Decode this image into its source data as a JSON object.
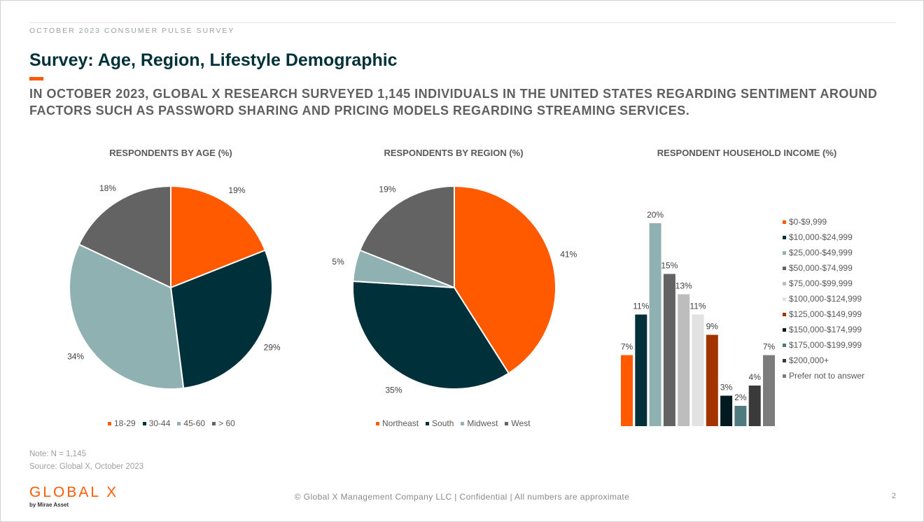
{
  "header": {
    "kicker": "OCTOBER 2023 CONSUMER PULSE SURVEY",
    "title": "Survey: Age, Region, Lifestyle Demographic",
    "subtitle": "IN OCTOBER 2023, GLOBAL X RESEARCH SURVEYED 1,145 INDIVIDUALS IN THE UNITED STATES REGARDING SENTIMENT AROUND FACTORS SUCH AS PASSWORD SHARING AND PRICING MODELS REGARDING STREAMING SERVICES."
  },
  "chart_data": [
    {
      "type": "pie",
      "title": "RESPONDENTS BY AGE (%)",
      "categories": [
        "18-29",
        "30-44",
        "45-60",
        "> 60"
      ],
      "values": [
        19,
        29,
        34,
        18
      ],
      "labels": [
        "19%",
        "29%",
        "34%",
        "18%"
      ],
      "colors": [
        "#ff5a00",
        "#00313a",
        "#8fb1b1",
        "#636363"
      ],
      "legend": "bottom"
    },
    {
      "type": "pie",
      "title": "RESPONDENTS BY REGION (%)",
      "categories": [
        "Northeast",
        "South",
        "Midwest",
        "West"
      ],
      "values": [
        41,
        35,
        5,
        19
      ],
      "labels": [
        "41%",
        "35%",
        "5%",
        "19%"
      ],
      "colors": [
        "#ff5a00",
        "#00313a",
        "#8fb1b1",
        "#636363"
      ],
      "legend": "bottom"
    },
    {
      "type": "bar",
      "title": "RESPONDENT HOUSEHOLD INCOME (%)",
      "categories": [
        "$0-$9,999",
        "$10,000-$24,999",
        "$25,000-$49,999",
        "$50,000-$74,999",
        "$75,000-$99,999",
        "$100,000-$124,999",
        "$125,000-$149,999",
        "$150,000-$174,999",
        "$175,000-$199,999",
        "$200,000+",
        "Prefer not to answer"
      ],
      "values": [
        7,
        11,
        20,
        15,
        13,
        11,
        9,
        3,
        2,
        4,
        7
      ],
      "labels": [
        "7%",
        "11%",
        "20%",
        "15%",
        "13%",
        "11%",
        "9%",
        "3%",
        "2%",
        "4%",
        "7%"
      ],
      "colors": [
        "#ff5a00",
        "#00313a",
        "#8fb1b1",
        "#636363",
        "#bdbdbd",
        "#e2e2e2",
        "#a33400",
        "#001a1f",
        "#4f7a7e",
        "#3a3a3a",
        "#7c7c7c"
      ],
      "ylim": [
        0,
        20
      ],
      "legend": "right"
    }
  ],
  "notes": {
    "note": "Note: N = 1,145",
    "source": "Source: Global X, October 2023"
  },
  "footer": {
    "logo": "GLOBAL X",
    "logo_sub": "by Mirae Asset",
    "text": "© Global X Management Company LLC | Confidential | All numbers are approximate",
    "page": "2"
  }
}
